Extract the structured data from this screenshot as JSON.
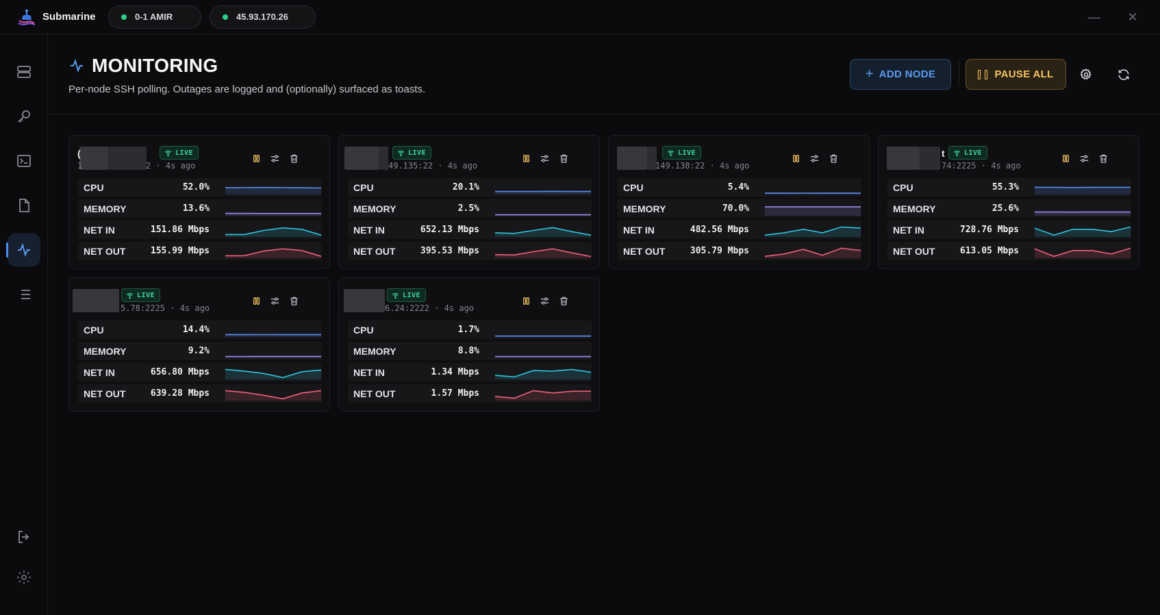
{
  "app": {
    "name": "Submarine",
    "connections": [
      {
        "label": "0-1 AMIR",
        "status_color": "#2fd08a"
      },
      {
        "label": "45.93.170.26",
        "status_color": "#2fd08a"
      }
    ],
    "window_controls": {
      "minimize": "—",
      "close": "✕"
    }
  },
  "sidebar": {
    "items": [
      {
        "name": "servers-icon",
        "active": false
      },
      {
        "name": "key-icon",
        "active": false
      },
      {
        "name": "terminal-icon",
        "active": false
      },
      {
        "name": "file-icon",
        "active": false
      },
      {
        "name": "activity-icon",
        "active": true
      },
      {
        "name": "list-icon",
        "active": false
      }
    ],
    "bottom": [
      {
        "name": "logout-icon"
      },
      {
        "name": "settings-icon"
      }
    ]
  },
  "page": {
    "title": "MONITORING",
    "subtitle": "Per-node SSH polling. Outages are logged and (optionally) surfaced as toasts.",
    "add_node_label": "ADD NODE",
    "pause_all_label": "PAUSE ALL"
  },
  "colors": {
    "cpu": "#5a8ff0",
    "memory": "#9a8cf5",
    "net_in": "#2fc4dc",
    "net_out": "#f0607c",
    "live": "#3fd6a0",
    "pause": "#f5c564"
  },
  "metric_labels": {
    "cpu": "CPU",
    "memory": "MEMORY",
    "net_in": "NET IN",
    "net_out": "NET OUT"
  },
  "nodes": [
    {
      "name_visible": "(",
      "host_suffix": "2 · 4s ago",
      "host_lead": "1",
      "live_label": "LIVE",
      "cpu": "52.0%",
      "memory": "13.6%",
      "net_in": "151.86 Mbps",
      "net_out": "155.99 Mbps",
      "series": {
        "cpu": [
          0.52,
          0.53,
          0.54,
          0.53,
          0.52,
          0.5
        ],
        "memory": [
          0.14,
          0.14,
          0.135,
          0.136,
          0.136,
          0.136
        ],
        "net_in": [
          0.15,
          0.15,
          0.5,
          0.72,
          0.6,
          0.1
        ],
        "net_out": [
          0.15,
          0.16,
          0.55,
          0.75,
          0.6,
          0.1
        ]
      }
    },
    {
      "name_visible": "",
      "host_suffix": "49.135:22 · 4s ago",
      "host_lead": "",
      "live_label": "LIVE",
      "cpu": "20.1%",
      "memory": "2.5%",
      "net_in": "652.13 Mbps",
      "net_out": "395.53 Mbps",
      "series": {
        "cpu": [
          0.2,
          0.2,
          0.2,
          0.21,
          0.2,
          0.2
        ],
        "memory": [
          0.025,
          0.025,
          0.025,
          0.025,
          0.025,
          0.025
        ],
        "net_in": [
          0.3,
          0.25,
          0.5,
          0.75,
          0.4,
          0.1
        ],
        "net_out": [
          0.25,
          0.22,
          0.5,
          0.75,
          0.4,
          0.08
        ]
      }
    },
    {
      "name_visible": "",
      "host_suffix": "149.138:22 · 4s ago",
      "host_lead": "",
      "live_label": "LIVE",
      "cpu": "5.4%",
      "memory": "70.0%",
      "net_in": "482.56 Mbps",
      "net_out": "305.79 Mbps",
      "series": {
        "cpu": [
          0.05,
          0.05,
          0.06,
          0.055,
          0.054,
          0.054
        ],
        "memory": [
          0.7,
          0.7,
          0.7,
          0.7,
          0.7,
          0.7
        ],
        "net_in": [
          0.1,
          0.3,
          0.6,
          0.3,
          0.8,
          0.7
        ],
        "net_out": [
          0.1,
          0.3,
          0.7,
          0.2,
          0.8,
          0.6
        ]
      }
    },
    {
      "name_visible": "t",
      "host_suffix": "74:2225 · 4s ago",
      "host_lead": "",
      "live_label": "LIVE",
      "cpu": "55.3%",
      "memory": "25.6%",
      "net_in": "728.76 Mbps",
      "net_out": "613.05 Mbps",
      "series": {
        "cpu": [
          0.55,
          0.55,
          0.54,
          0.55,
          0.55,
          0.55
        ],
        "memory": [
          0.26,
          0.26,
          0.255,
          0.256,
          0.256,
          0.256
        ],
        "net_in": [
          0.7,
          0.1,
          0.6,
          0.6,
          0.4,
          0.8
        ],
        "net_out": [
          0.75,
          0.1,
          0.6,
          0.6,
          0.3,
          0.8
        ]
      }
    },
    {
      "name_visible": "",
      "host_suffix": "5.78:2225 · 4s ago",
      "host_lead": "",
      "live_label": "LIVE",
      "cpu": "14.4%",
      "memory": "9.2%",
      "net_in": "656.80 Mbps",
      "net_out": "639.28 Mbps",
      "series": {
        "cpu": [
          0.14,
          0.14,
          0.145,
          0.144,
          0.144,
          0.144
        ],
        "memory": [
          0.09,
          0.09,
          0.092,
          0.092,
          0.092,
          0.092
        ],
        "net_in": [
          0.8,
          0.65,
          0.45,
          0.1,
          0.6,
          0.75
        ],
        "net_out": [
          0.8,
          0.65,
          0.4,
          0.1,
          0.6,
          0.8
        ]
      }
    },
    {
      "name_visible": "",
      "host_suffix": "6.24:2222 · 4s ago",
      "host_lead": "",
      "live_label": "LIVE",
      "cpu": "1.7%",
      "memory": "8.8%",
      "net_in": "1.34 Mbps",
      "net_out": "1.57 Mbps",
      "series": {
        "cpu": [
          0.02,
          0.017,
          0.017,
          0.017,
          0.017,
          0.017
        ],
        "memory": [
          0.09,
          0.088,
          0.088,
          0.088,
          0.088,
          0.088
        ],
        "net_in": [
          0.3,
          0.15,
          0.7,
          0.65,
          0.8,
          0.55
        ],
        "net_out": [
          0.3,
          0.15,
          0.8,
          0.6,
          0.75,
          0.75
        ]
      }
    }
  ]
}
